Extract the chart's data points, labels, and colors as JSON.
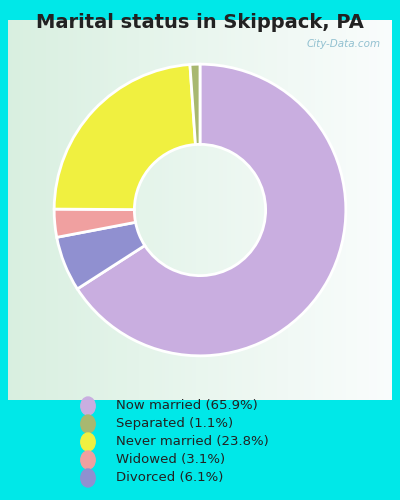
{
  "title": "Marital status in Skippack, PA",
  "values": [
    65.9,
    1.1,
    23.8,
    3.1,
    6.1
  ],
  "colors": [
    "#c9aee0",
    "#a8b870",
    "#f0f040",
    "#f0a0a0",
    "#9090d0"
  ],
  "legend_labels": [
    "Now married (65.9%)",
    "Separated (1.1%)",
    "Never married (23.8%)",
    "Widowed (3.1%)",
    "Divorced (6.1%)"
  ],
  "bg_outer": "#00e8e8",
  "bg_chart_top": "#e8f5e0",
  "bg_chart_bottom": "#c8e8d8",
  "title_fontsize": 14,
  "watermark": "City-Data.com",
  "startangle": 90,
  "donut_width": 0.55
}
